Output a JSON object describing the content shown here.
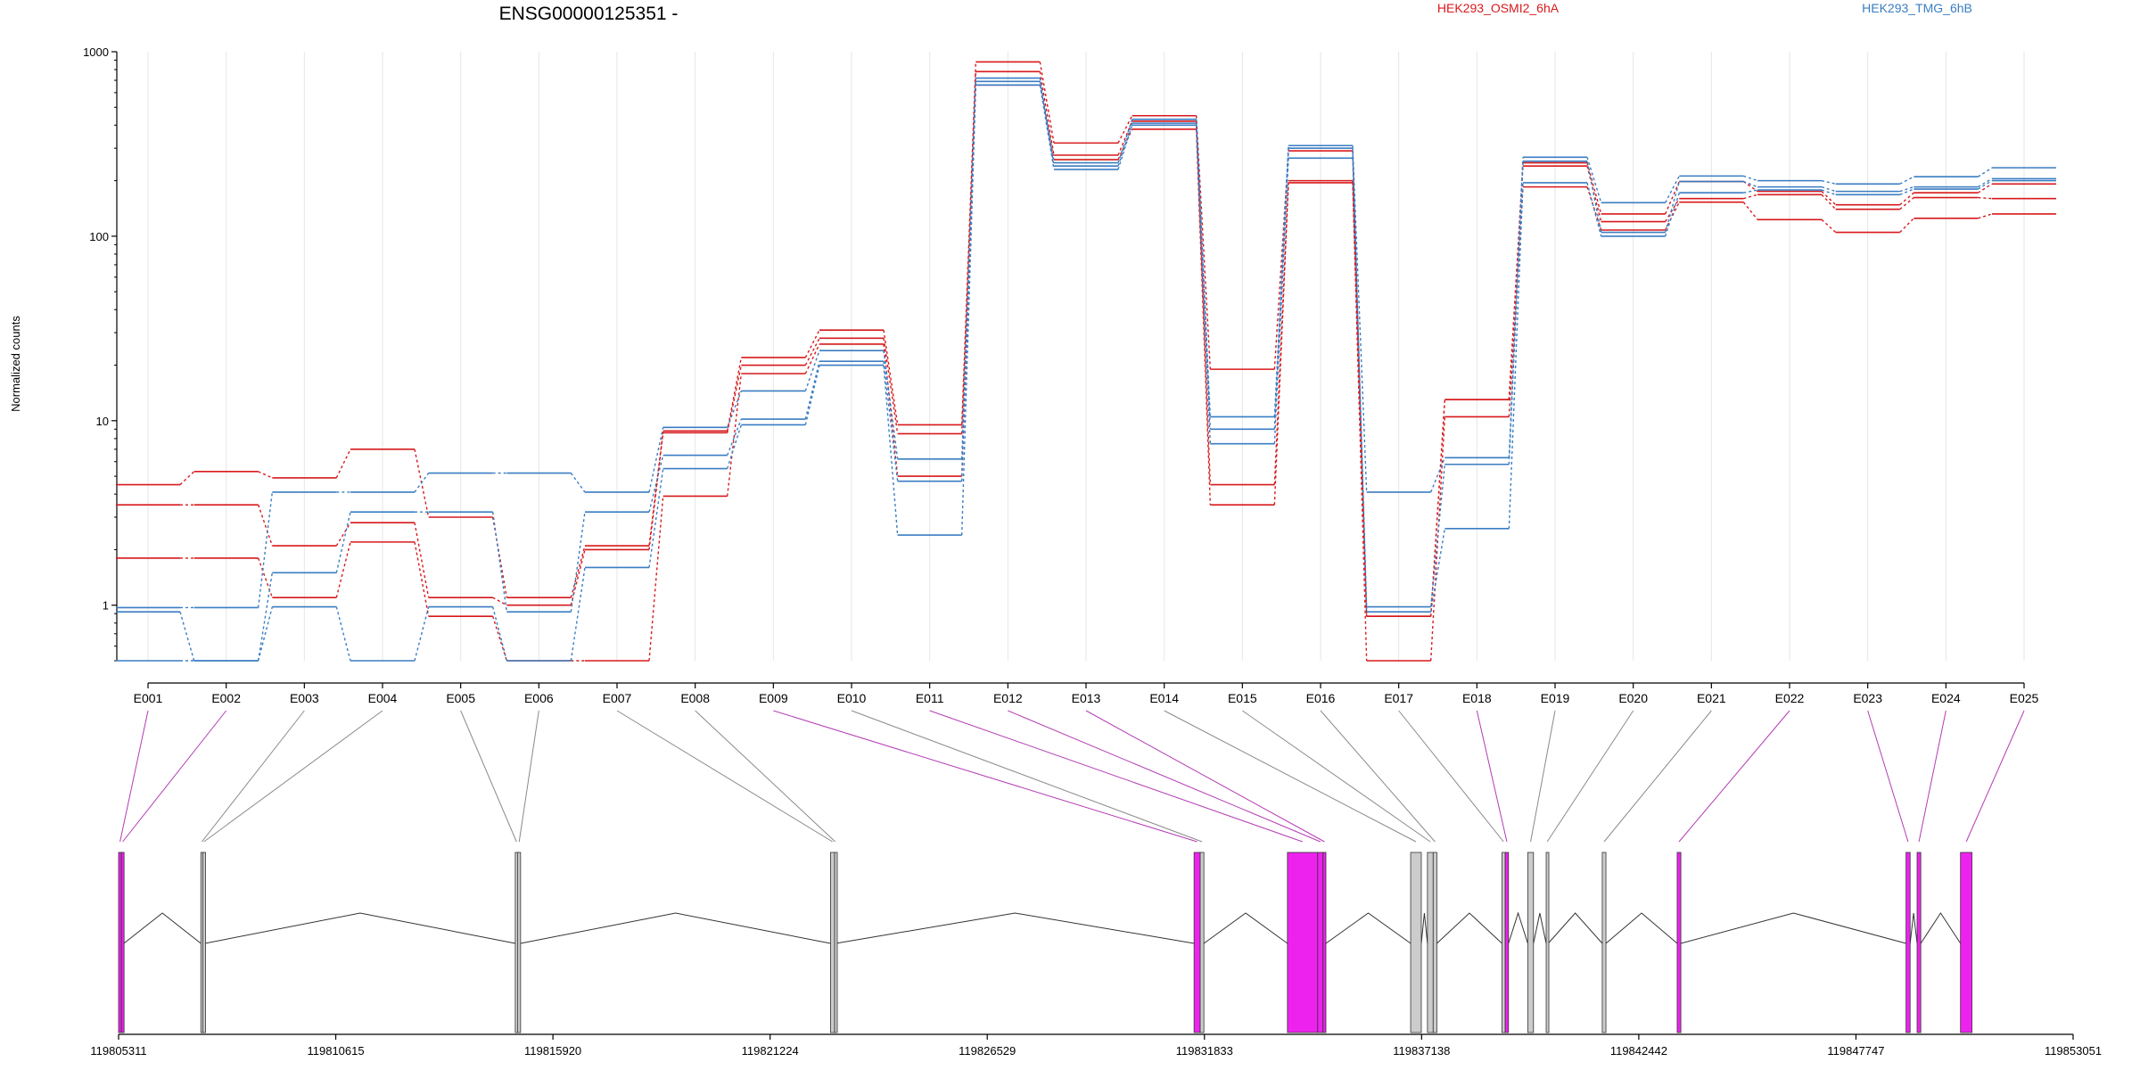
{
  "chart_data": {
    "type": "line",
    "title": "ENSG00000125351 -",
    "ylabel": "Normalized counts",
    "yscale": "log",
    "ylim": [
      0.5,
      1000
    ],
    "yticks": [
      1,
      10,
      100,
      1000
    ],
    "ytick_labels": [
      "1",
      "10",
      "100",
      "1000"
    ],
    "grid": "vertical",
    "legend_placement": "top",
    "categories": [
      "E001",
      "E002",
      "E003",
      "E004",
      "E005",
      "E006",
      "E007",
      "E008",
      "E009",
      "E010",
      "E011",
      "E012",
      "E013",
      "E014",
      "E015",
      "E016",
      "E017",
      "E018",
      "E019",
      "E020",
      "E021",
      "E022",
      "E023",
      "E024",
      "E025"
    ],
    "series": [
      {
        "group": "HEK293_OSMI2_6hA",
        "color": "#d7191c",
        "values": [
          4.5,
          5.3,
          4.9,
          7.0,
          3.0,
          1.1,
          2.1,
          8.8,
          22,
          31,
          9.5,
          880,
          320,
          450,
          19,
          290,
          0.87,
          13,
          250,
          132,
          198,
          175,
          148,
          172,
          192
        ]
      },
      {
        "group": "HEK293_OSMI2_6hA",
        "color": "#d7191c",
        "values": [
          3.5,
          3.5,
          2.1,
          2.8,
          1.1,
          1.0,
          2.0,
          8.6,
          20,
          28,
          8.5,
          780,
          275,
          420,
          4.5,
          200,
          0.87,
          13,
          240,
          120,
          160,
          168,
          140,
          162,
          160
        ]
      },
      {
        "group": "HEK293_OSMI2_6hA",
        "color": "#d7191c",
        "values": [
          1.8,
          1.8,
          1.1,
          2.2,
          0.87,
          0.5,
          0.5,
          3.9,
          18,
          26,
          5.0,
          660,
          260,
          380,
          3.5,
          195,
          0.5,
          10.5,
          185,
          108,
          153,
          123,
          105,
          125,
          132
        ]
      },
      {
        "group": "HEK293_TMG_6hB",
        "color": "#3a7dc2",
        "values": [
          0.97,
          0.97,
          4.1,
          4.1,
          5.2,
          5.2,
          4.1,
          9.2,
          14.5,
          24,
          6.2,
          720,
          250,
          430,
          10.5,
          310,
          4.1,
          6.3,
          268,
          152,
          212,
          200,
          192,
          210,
          235
        ]
      },
      {
        "group": "HEK293_TMG_6hB",
        "color": "#3a7dc2",
        "values": [
          0.92,
          0.5,
          1.5,
          3.2,
          3.2,
          0.92,
          3.2,
          6.5,
          10.2,
          21,
          4.7,
          690,
          240,
          410,
          9.0,
          300,
          0.98,
          5.8,
          255,
          105,
          198,
          185,
          175,
          185,
          205
        ]
      },
      {
        "group": "HEK293_TMG_6hB",
        "color": "#3a7dc2",
        "values": [
          0.5,
          0.5,
          0.98,
          0.5,
          0.98,
          0.5,
          1.6,
          5.5,
          9.5,
          20,
          2.4,
          660,
          230,
          400,
          7.5,
          265,
          0.92,
          2.6,
          195,
          100,
          172,
          178,
          168,
          180,
          200
        ]
      }
    ],
    "legend": [
      {
        "label": "HEK293_OSMI2_6hA",
        "color": "#d7191c"
      },
      {
        "label": "HEK293_TMG_6hB",
        "color": "#3a7dc2"
      }
    ],
    "gene_model": {
      "coordinate_ticks": [
        "119805311",
        "119810615",
        "119815920",
        "119821224",
        "119826529",
        "119831833",
        "119837138",
        "119842442",
        "119847747",
        "119853051"
      ],
      "coord_range": [
        119805311,
        119853051
      ],
      "highlight_color": "#ee22ee",
      "exon_color": "#cccccc",
      "exons": [
        {
          "id": "E001",
          "start": 119805311,
          "end": 119805380,
          "highlight": true
        },
        {
          "id": "E002",
          "start": 119805380,
          "end": 119805440,
          "highlight": true
        },
        {
          "id": "E003",
          "start": 119807320,
          "end": 119807370,
          "highlight": false
        },
        {
          "id": "E004",
          "start": 119807370,
          "end": 119807420,
          "highlight": false
        },
        {
          "id": "E005",
          "start": 119815000,
          "end": 119815060,
          "highlight": false
        },
        {
          "id": "E006",
          "start": 119815060,
          "end": 119815130,
          "highlight": false
        },
        {
          "id": "E007",
          "start": 119822700,
          "end": 119822800,
          "highlight": false
        },
        {
          "id": "E008",
          "start": 119822800,
          "end": 119822830,
          "highlight": false
        },
        {
          "id": "E009",
          "start": 119831580,
          "end": 119831730,
          "highlight": true
        },
        {
          "id": "E010",
          "start": 119831730,
          "end": 119831820,
          "highlight": false
        },
        {
          "id": "E011",
          "start": 119833860,
          "end": 119834600,
          "highlight": true
        },
        {
          "id": "E012",
          "start": 119834600,
          "end": 119834730,
          "highlight": true
        },
        {
          "id": "E013",
          "start": 119834730,
          "end": 119834800,
          "highlight": true
        },
        {
          "id": "E014",
          "start": 119836870,
          "end": 119837130,
          "highlight": false
        },
        {
          "id": "E015",
          "start": 119837280,
          "end": 119837420,
          "highlight": false
        },
        {
          "id": "E016",
          "start": 119837420,
          "end": 119837510,
          "highlight": false
        },
        {
          "id": "E017",
          "start": 119839100,
          "end": 119839180,
          "highlight": false
        },
        {
          "id": "E018",
          "start": 119839180,
          "end": 119839260,
          "highlight": true
        },
        {
          "id": "E019",
          "start": 119839730,
          "end": 119839870,
          "highlight": false
        },
        {
          "id": "E020",
          "start": 119840180,
          "end": 119840230,
          "highlight": false
        },
        {
          "id": "E021",
          "start": 119841550,
          "end": 119841640,
          "highlight": false
        },
        {
          "id": "E022",
          "start": 119843380,
          "end": 119843470,
          "highlight": true
        },
        {
          "id": "E023",
          "start": 119848970,
          "end": 119849070,
          "highlight": true
        },
        {
          "id": "E024",
          "start": 119849240,
          "end": 119849330,
          "highlight": true
        },
        {
          "id": "E025",
          "start": 119850300,
          "end": 119850580,
          "highlight": true
        }
      ]
    }
  }
}
